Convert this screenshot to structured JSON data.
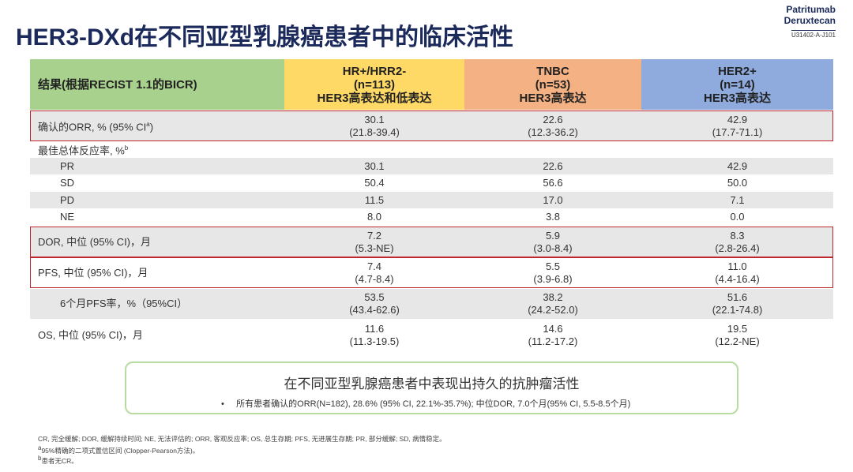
{
  "header": {
    "title": "HER3-DXd在不同亚型乳腺癌患者中的临床活性",
    "brand": [
      "Patritumab",
      "Deruxtecan"
    ],
    "code": "U31402-A-J101"
  },
  "table": {
    "columns": [
      {
        "lines": [
          "结果(根据RECIST 1.1的BICR)"
        ],
        "color": "#a9d18e"
      },
      {
        "lines": [
          "HR+/HRR2-",
          "(n=113)",
          "HER3高表达和低表达"
        ],
        "color": "#ffd966"
      },
      {
        "lines": [
          "TNBC",
          "(n=53)",
          "HER3高表达"
        ],
        "color": "#f4b183"
      },
      {
        "lines": [
          "HER2+",
          "(n=14)",
          "HER3高表达"
        ],
        "color": "#8faadc"
      }
    ],
    "rows": [
      {
        "label": "确认的ORR, % (95% CI",
        "sup": "a",
        "label_end": ")",
        "highlight": true,
        "cells": [
          {
            "value": "30.1",
            "ci": "(21.8-39.4)"
          },
          {
            "value": "22.6",
            "ci": "(12.3-36.2)"
          },
          {
            "value": "42.9",
            "ci": "(17.7-71.1)"
          }
        ]
      },
      {
        "label": "最佳总体反应率, %",
        "sup": "b"
      },
      {
        "label": "PR",
        "indent": true,
        "cells": [
          {
            "value": "30.1"
          },
          {
            "value": "22.6"
          },
          {
            "value": "42.9"
          }
        ]
      },
      {
        "label": "SD",
        "indent": true,
        "cells": [
          {
            "value": "50.4"
          },
          {
            "value": "56.6"
          },
          {
            "value": "50.0"
          }
        ]
      },
      {
        "label": "PD",
        "indent": true,
        "cells": [
          {
            "value": "11.5"
          },
          {
            "value": "17.0"
          },
          {
            "value": "7.1"
          }
        ]
      },
      {
        "label": "NE",
        "indent": true,
        "cells": [
          {
            "value": "8.0"
          },
          {
            "value": "3.8"
          },
          {
            "value": "0.0"
          }
        ]
      },
      {
        "label": "DOR, 中位 (95% CI)，月",
        "highlight": true,
        "cells": [
          {
            "value": "7.2",
            "ci": "(5.3-NE)"
          },
          {
            "value": "5.9",
            "ci": "(3.0-8.4)"
          },
          {
            "value": "8.3",
            "ci": "(2.8-26.4)"
          }
        ]
      },
      {
        "label": "PFS, 中位 (95% CI)，月",
        "highlight": true,
        "cells": [
          {
            "value": "7.4",
            "ci": "(4.7-8.4)"
          },
          {
            "value": "5.5",
            "ci": "(3.9-6.8)"
          },
          {
            "value": "11.0",
            "ci": "(4.4-16.4)"
          }
        ]
      },
      {
        "label": "6个月PFS率，%（95%CI）",
        "indent": true,
        "cells": [
          {
            "value": "53.5",
            "ci": "(43.4-62.6)"
          },
          {
            "value": "38.2",
            "ci": "(24.2-52.0)"
          },
          {
            "value": "51.6",
            "ci": "(22.1-74.8)"
          }
        ]
      },
      {
        "label": "OS, 中位 (95% CI)，月",
        "cells": [
          {
            "value": "11.6",
            "ci": "(11.3-19.5)"
          },
          {
            "value": "14.6",
            "ci": "(11.2-17.2)"
          },
          {
            "value": "19.5",
            "ci": "(12.2-NE)"
          }
        ]
      }
    ]
  },
  "callout": {
    "title": "在不同亚型乳腺癌患者中表现出持久的抗肿瘤活性",
    "bullet": "所有患者确认的ORR(N=182), 28.6% (95% CI, 22.1%-35.7%); 中位DOR, 7.0个月(95% CI, 5.5-8.5个月)"
  },
  "footnotes": [
    {
      "text": "CR, 完全缓解; DOR, 缓解持续时间; NE, 无法评估的; ORR, 客观反应率; OS, 总生存期; PFS, 无进展生存期; PR, 部分缓解; SD, 病情稳定。"
    },
    {
      "sup": "a",
      "text": "95%精确的二项式置信区间 (Clopper-Pearson方法)。"
    },
    {
      "sup": "b",
      "text": "患者无CR。"
    }
  ]
}
